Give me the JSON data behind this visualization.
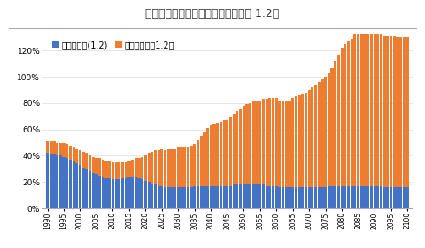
{
  "title": "图表：老年抚养比上行（假定生育率 1.2）",
  "legend1": "少儿抚养比(1.2)",
  "legend2": "老年抚养比（1.2）",
  "years": [
    1990,
    1991,
    1992,
    1993,
    1994,
    1995,
    1996,
    1997,
    1998,
    1999,
    2000,
    2001,
    2002,
    2003,
    2004,
    2005,
    2006,
    2007,
    2008,
    2009,
    2010,
    2011,
    2012,
    2013,
    2014,
    2015,
    2016,
    2017,
    2018,
    2019,
    2020,
    2021,
    2022,
    2023,
    2024,
    2025,
    2026,
    2027,
    2028,
    2029,
    2030,
    2031,
    2032,
    2033,
    2034,
    2035,
    2036,
    2037,
    2038,
    2039,
    2040,
    2041,
    2042,
    2043,
    2044,
    2045,
    2046,
    2047,
    2048,
    2049,
    2050,
    2051,
    2052,
    2053,
    2054,
    2055,
    2056,
    2057,
    2058,
    2059,
    2060,
    2061,
    2062,
    2063,
    2064,
    2065,
    2066,
    2067,
    2068,
    2069,
    2070,
    2071,
    2072,
    2073,
    2074,
    2075,
    2076,
    2077,
    2078,
    2079,
    2080,
    2081,
    2082,
    2083,
    2084,
    2085,
    2086,
    2087,
    2088,
    2089,
    2090,
    2091,
    2092,
    2093,
    2094,
    2095,
    2096,
    2097,
    2098,
    2099,
    2100
  ],
  "youth_ratio": [
    0.42,
    0.41,
    0.41,
    0.4,
    0.4,
    0.39,
    0.38,
    0.37,
    0.36,
    0.34,
    0.33,
    0.31,
    0.3,
    0.28,
    0.27,
    0.26,
    0.25,
    0.24,
    0.23,
    0.23,
    0.22,
    0.22,
    0.22,
    0.23,
    0.23,
    0.24,
    0.24,
    0.24,
    0.23,
    0.22,
    0.21,
    0.2,
    0.19,
    0.18,
    0.17,
    0.17,
    0.16,
    0.16,
    0.16,
    0.16,
    0.16,
    0.16,
    0.16,
    0.16,
    0.16,
    0.17,
    0.17,
    0.17,
    0.17,
    0.17,
    0.17,
    0.17,
    0.17,
    0.17,
    0.17,
    0.17,
    0.17,
    0.18,
    0.18,
    0.18,
    0.18,
    0.18,
    0.18,
    0.18,
    0.18,
    0.18,
    0.18,
    0.17,
    0.17,
    0.17,
    0.17,
    0.16,
    0.16,
    0.16,
    0.16,
    0.16,
    0.16,
    0.16,
    0.16,
    0.16,
    0.16,
    0.16,
    0.16,
    0.16,
    0.16,
    0.16,
    0.17,
    0.17,
    0.17,
    0.17,
    0.17,
    0.17,
    0.17,
    0.17,
    0.17,
    0.17,
    0.17,
    0.17,
    0.17,
    0.17,
    0.17,
    0.17,
    0.17,
    0.16,
    0.16,
    0.16,
    0.16,
    0.16,
    0.16,
    0.16,
    0.16
  ],
  "elderly_ratio": [
    0.09,
    0.1,
    0.1,
    0.1,
    0.1,
    0.11,
    0.11,
    0.11,
    0.11,
    0.11,
    0.11,
    0.12,
    0.12,
    0.12,
    0.12,
    0.12,
    0.13,
    0.13,
    0.13,
    0.13,
    0.13,
    0.13,
    0.13,
    0.12,
    0.12,
    0.12,
    0.13,
    0.14,
    0.15,
    0.17,
    0.19,
    0.22,
    0.24,
    0.26,
    0.27,
    0.28,
    0.28,
    0.29,
    0.29,
    0.29,
    0.3,
    0.3,
    0.31,
    0.31,
    0.32,
    0.32,
    0.35,
    0.38,
    0.41,
    0.44,
    0.46,
    0.47,
    0.48,
    0.49,
    0.5,
    0.5,
    0.52,
    0.54,
    0.56,
    0.58,
    0.6,
    0.61,
    0.62,
    0.63,
    0.64,
    0.64,
    0.65,
    0.66,
    0.67,
    0.67,
    0.67,
    0.66,
    0.66,
    0.66,
    0.66,
    0.68,
    0.69,
    0.7,
    0.71,
    0.72,
    0.74,
    0.76,
    0.78,
    0.8,
    0.82,
    0.84,
    0.86,
    0.9,
    0.95,
    1.0,
    1.05,
    1.08,
    1.1,
    1.12,
    1.15,
    1.18,
    1.2,
    1.2,
    1.2,
    1.2,
    1.18,
    1.17,
    1.16,
    1.15,
    1.15,
    1.15,
    1.15,
    1.14,
    1.14,
    1.14,
    1.14
  ],
  "youth_color": "#4472C4",
  "elderly_color": "#ED7D31",
  "bg_color": "#FFFFFF",
  "title_fontsize": 9,
  "legend_fontsize": 7,
  "tick_years": [
    1990,
    1995,
    2000,
    2005,
    2010,
    2015,
    2020,
    2025,
    2030,
    2035,
    2040,
    2045,
    2050,
    2055,
    2060,
    2065,
    2070,
    2075,
    2080,
    2085,
    2090,
    2095,
    2100
  ],
  "ylim": [
    0,
    1.32
  ],
  "yticks": [
    0,
    0.2,
    0.4,
    0.6,
    0.8,
    1.0,
    1.2
  ]
}
